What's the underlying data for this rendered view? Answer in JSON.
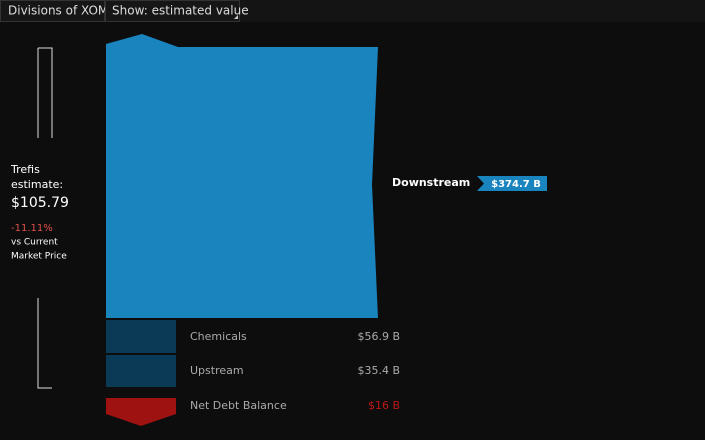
{
  "header": {
    "tabs": [
      "Divisions of XOM",
      "Show: estimated value"
    ]
  },
  "estimate": {
    "label_line1": "Trefis",
    "label_line2": "estimate:",
    "price": "$105.79",
    "change": "-11.11%",
    "note_line1": "vs Current",
    "note_line2": "Market Price"
  },
  "divisions": [
    {
      "name": "Downstream",
      "value": "$374.7 B"
    },
    {
      "name": "Chemicals",
      "value": "$56.9 B"
    },
    {
      "name": "Upstream",
      "value": "$35.4 B"
    },
    {
      "name": "Net Debt Balance",
      "value": "$16 B"
    }
  ]
}
